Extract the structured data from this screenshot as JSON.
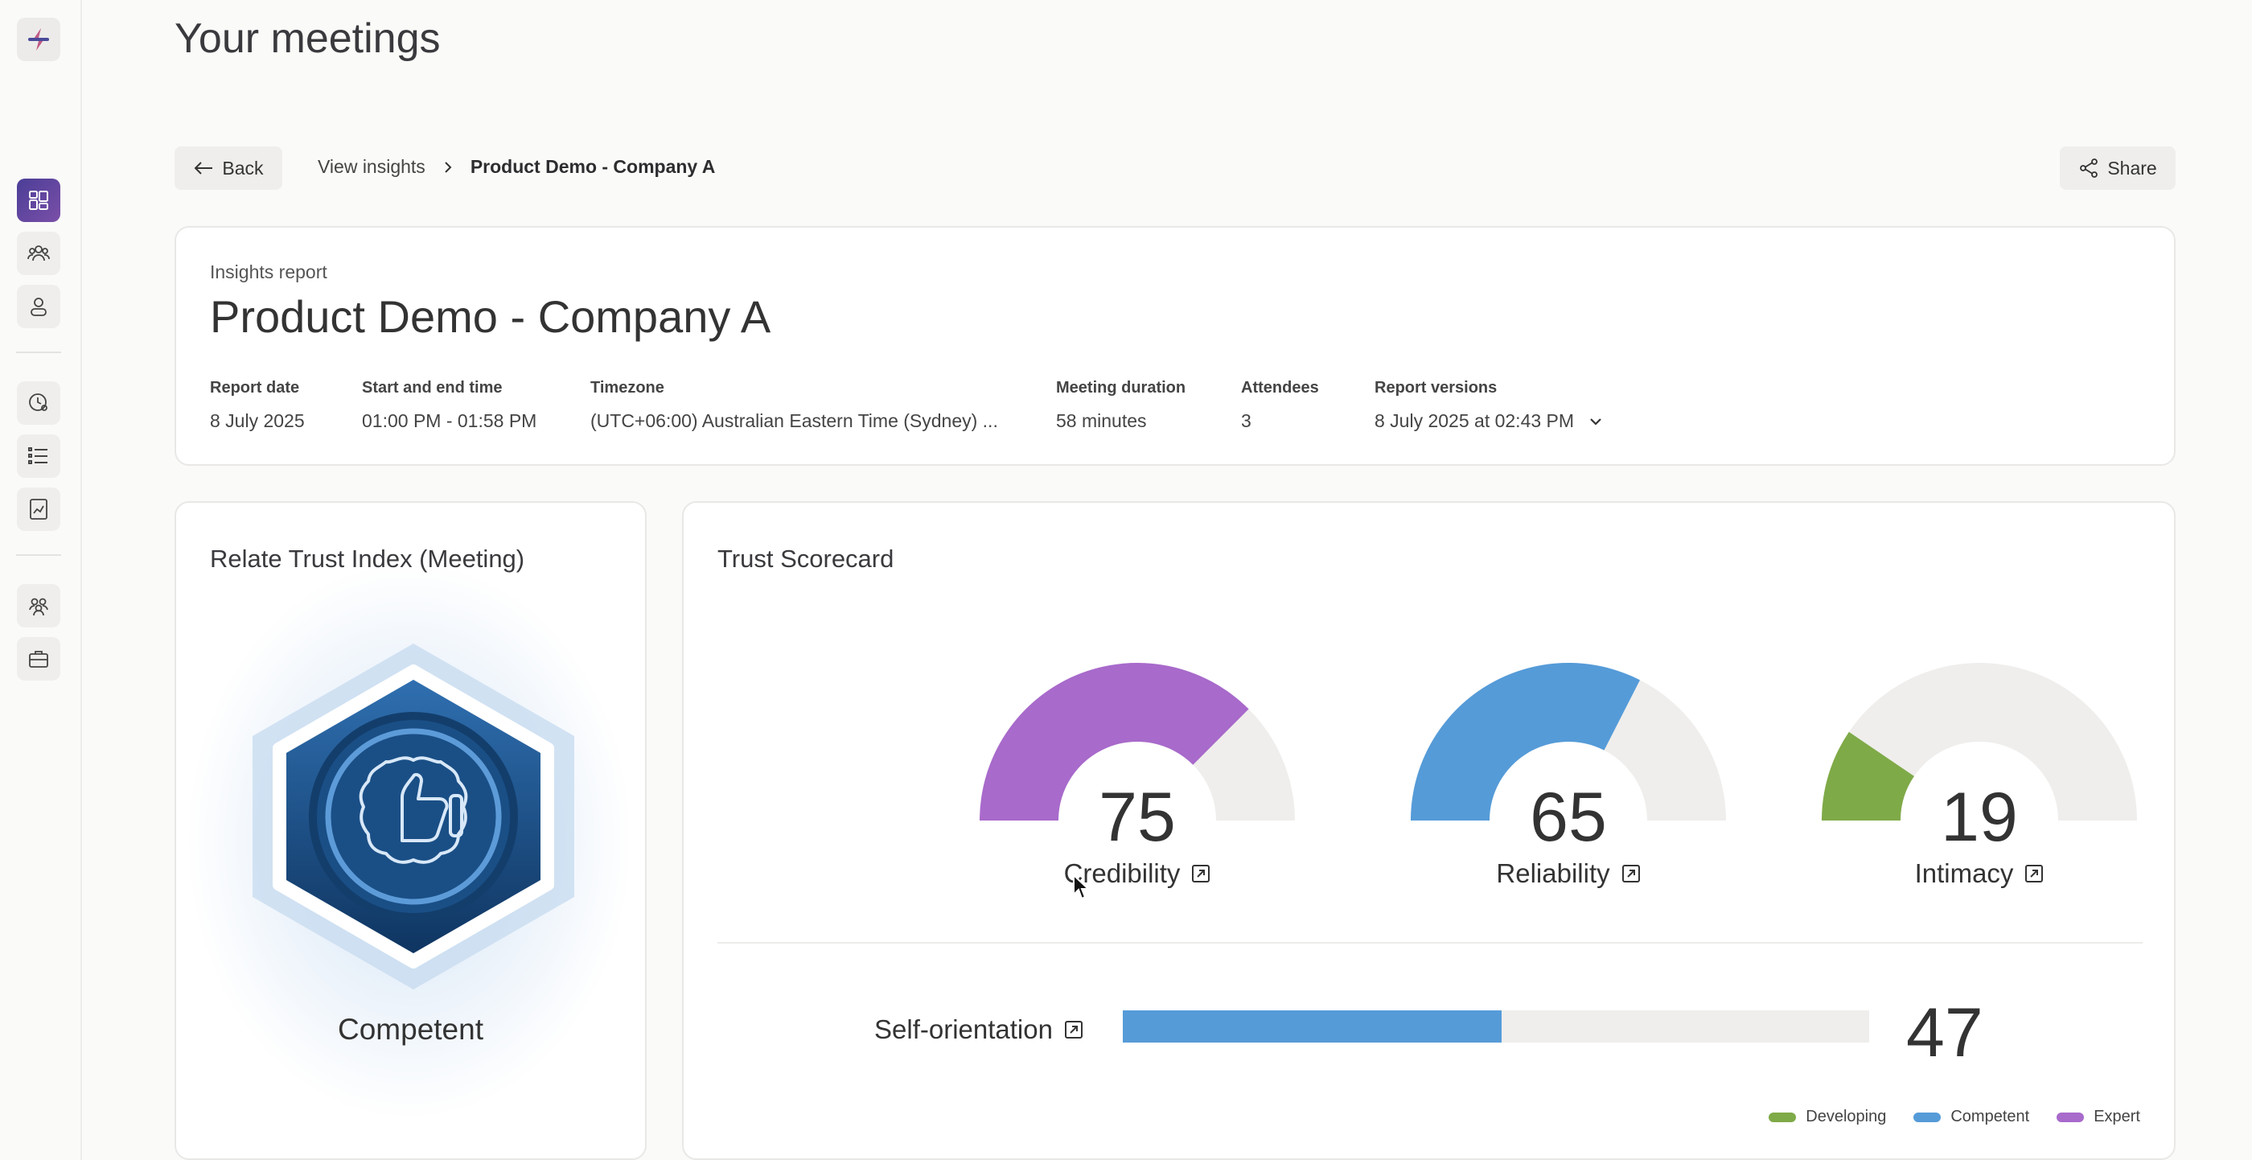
{
  "page": {
    "title": "Your meetings"
  },
  "nav": {
    "back_label": "Back",
    "breadcrumb": {
      "parent": "View insights",
      "current": "Product Demo - Company A"
    },
    "share_label": "Share"
  },
  "sidebar": {
    "items": [
      {
        "icon": "dashboard-icon",
        "active": true
      },
      {
        "icon": "meetings-icon"
      },
      {
        "icon": "profile-icon"
      },
      {
        "icon": "clock-user-icon"
      },
      {
        "icon": "list-icon"
      },
      {
        "icon": "report-chart-icon"
      },
      {
        "icon": "team-icon"
      },
      {
        "icon": "briefcase-icon"
      }
    ]
  },
  "report": {
    "label": "Insights report",
    "title": "Product Demo - Company A",
    "meta": [
      {
        "label": "Report date",
        "value": "8 July 2025"
      },
      {
        "label": "Start and end time",
        "value": "01:00 PM - 01:58 PM"
      },
      {
        "label": "Timezone",
        "value": "(UTC+06:00) Australian Eastern Time (Sydney) ..."
      },
      {
        "label": "Meeting duration",
        "value": "58 minutes"
      },
      {
        "label": "Attendees",
        "value": "3"
      },
      {
        "label": "Report versions",
        "value": "8 July 2025 at 02:43 PM"
      }
    ]
  },
  "rti": {
    "title": "Relate Trust Index (Meeting)",
    "level": "Competent"
  },
  "scorecard": {
    "title": "Trust Scorecard",
    "gauges": [
      {
        "label": "Credibility",
        "value": 75,
        "color": "#a86acb"
      },
      {
        "label": "Reliability",
        "value": 65,
        "color": "#559bd8"
      },
      {
        "label": "Intimacy",
        "value": 19,
        "color": "#7faa48"
      }
    ],
    "self_orientation": {
      "label": "Self-orientation",
      "value": 47,
      "color": "#559bd8"
    },
    "legend": [
      {
        "label": "Developing",
        "color": "#7faa48"
      },
      {
        "label": "Competent",
        "color": "#559bd8"
      },
      {
        "label": "Expert",
        "color": "#a86acb"
      }
    ]
  }
}
